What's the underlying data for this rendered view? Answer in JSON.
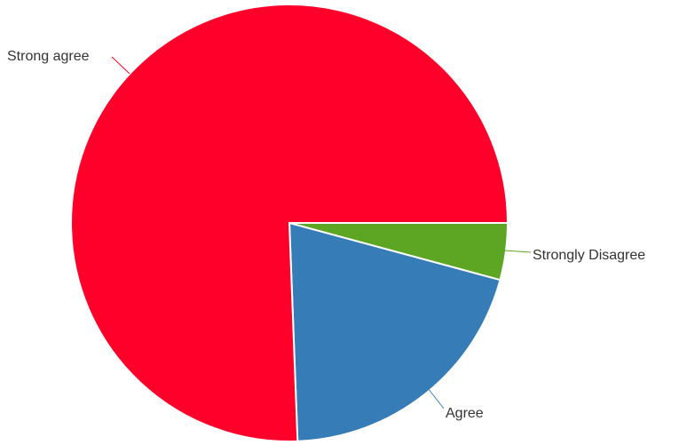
{
  "chart_data": {
    "type": "pie",
    "title": "",
    "slices": [
      {
        "label": "Strong agree",
        "value": 75.6,
        "color": "#ff002b"
      },
      {
        "label": "Agree",
        "value": 20.2,
        "color": "#367db8"
      },
      {
        "label": "Strongly Disagree",
        "value": 4.2,
        "color": "#5da623"
      }
    ]
  }
}
